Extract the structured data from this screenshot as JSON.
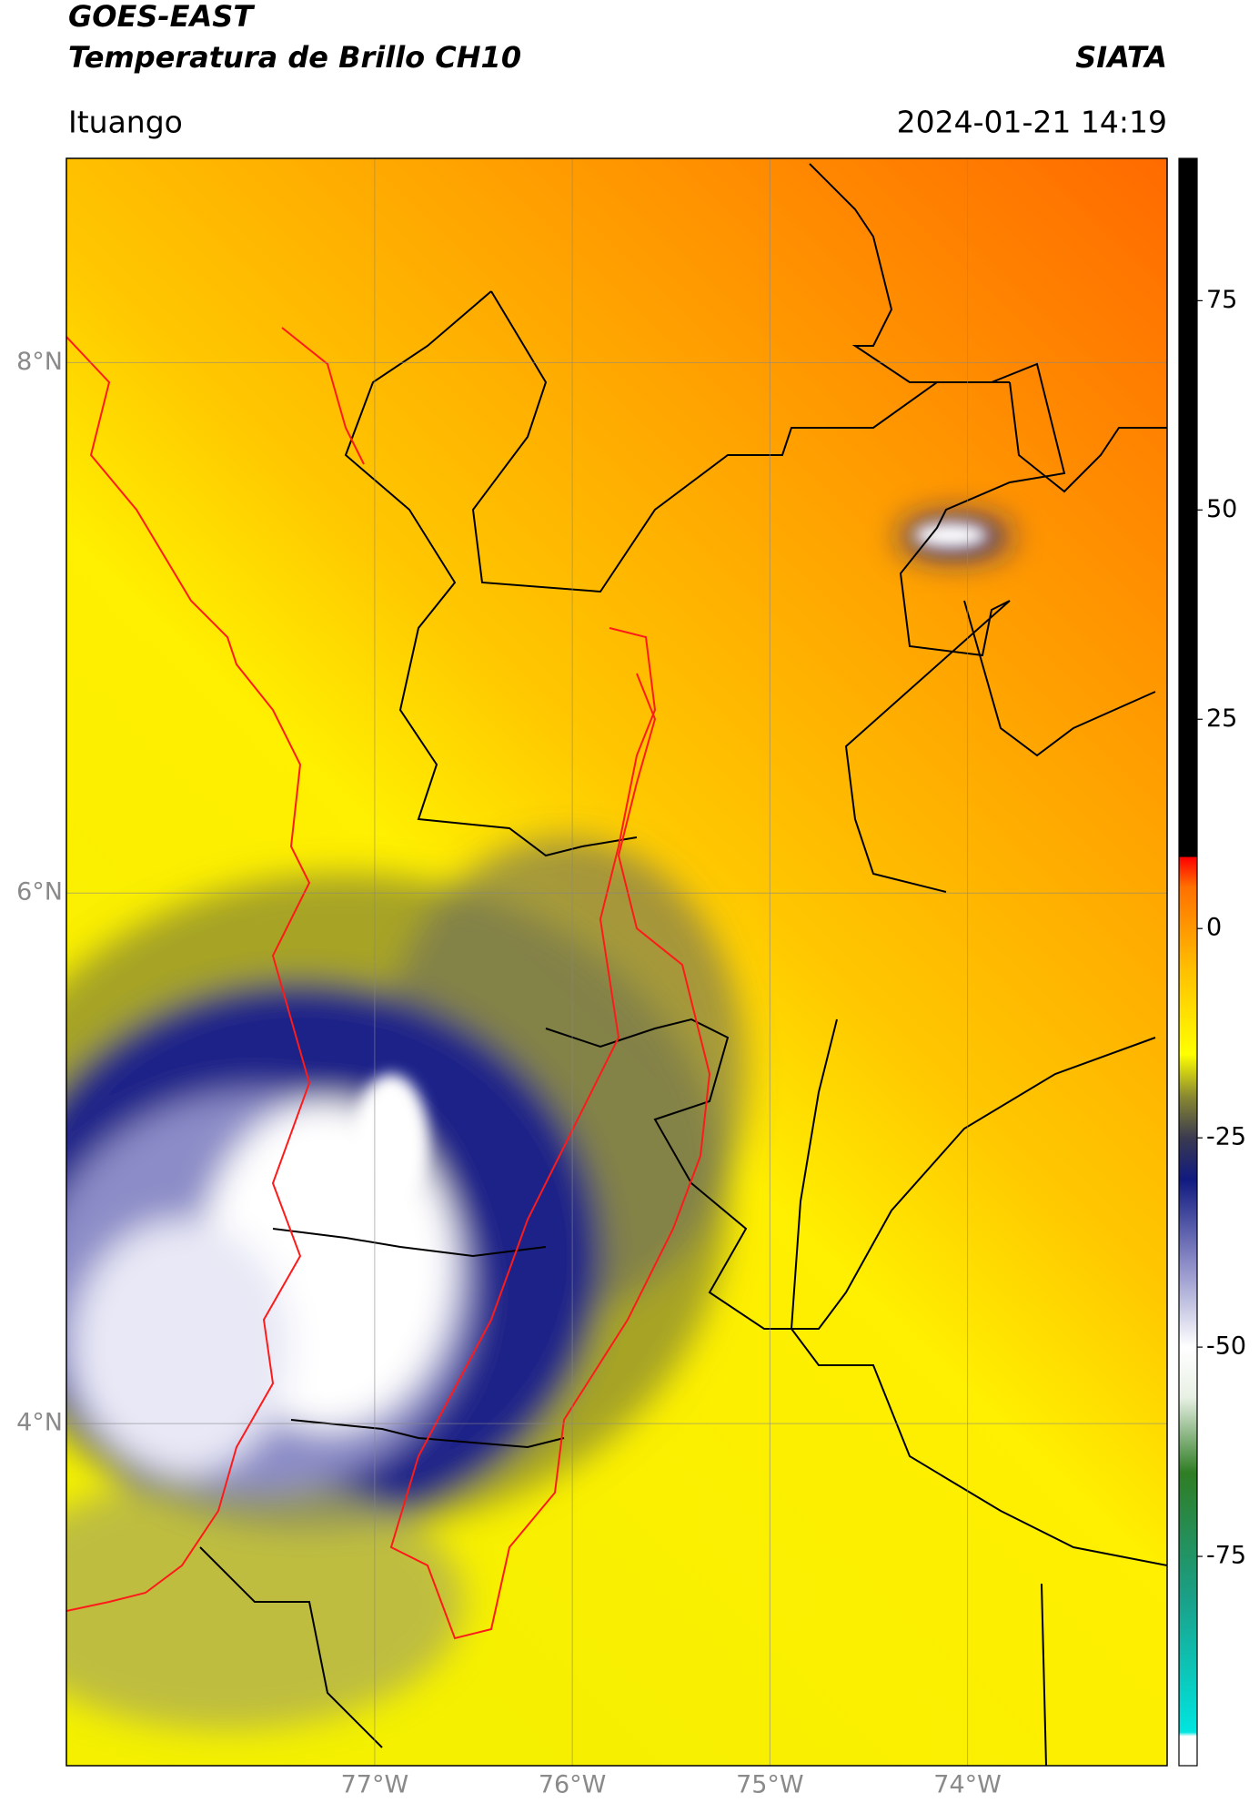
{
  "chart_data": {
    "type": "map",
    "title": "GOES-EAST",
    "subtitle": "Temperatura de Brillo CH10",
    "source": "SIATA",
    "region": "Ituango",
    "datetime": "2024-01-21 14:19",
    "xlim": [
      -78.56,
      -72.99
    ],
    "ylim": [
      2.71,
      8.77
    ],
    "xticks": [
      {
        "value": -77,
        "label": "77°W"
      },
      {
        "value": -76,
        "label": "76°W"
      },
      {
        "value": -75,
        "label": "75°W"
      },
      {
        "value": -74,
        "label": "74°W"
      }
    ],
    "yticks": [
      {
        "value": 8,
        "label": "8°N"
      },
      {
        "value": 6,
        "label": "6°N"
      },
      {
        "value": 4,
        "label": "4°N"
      }
    ],
    "grid": true,
    "colorbar": {
      "clim": [
        -100,
        92
      ],
      "ticks": [
        75,
        50,
        25,
        0,
        -25,
        -50,
        -75
      ],
      "stops": [
        {
          "value": -100,
          "color": "#ffffff"
        },
        {
          "value": -96.5,
          "color": "#ffffff"
        },
        {
          "value": -96,
          "color": "#00e5e0"
        },
        {
          "value": -80,
          "color": "#1aa088"
        },
        {
          "value": -65,
          "color": "#2f7d24"
        },
        {
          "value": -56,
          "color": "#e8f0e4"
        },
        {
          "value": -50,
          "color": "#ffffff"
        },
        {
          "value": -40,
          "color": "#8c8cc8"
        },
        {
          "value": -30,
          "color": "#101a80"
        },
        {
          "value": -25,
          "color": "#3a3a50"
        },
        {
          "value": -20,
          "color": "#8a8a30"
        },
        {
          "value": -15,
          "color": "#ffff00"
        },
        {
          "value": -5,
          "color": "#ffc000"
        },
        {
          "value": 5,
          "color": "#ff7000"
        },
        {
          "value": 8.5,
          "color": "#ff0000"
        },
        {
          "value": 8.6,
          "color": "#000000"
        },
        {
          "value": 92,
          "color": "#000000"
        }
      ]
    }
  }
}
